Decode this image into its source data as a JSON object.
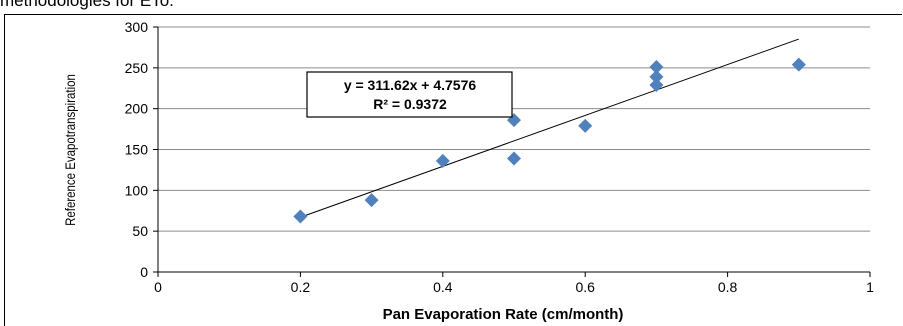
{
  "caption": "methodologies for ETo.",
  "chart_data": {
    "type": "scatter",
    "xlabel": "Pan Evaporation Rate (cm/month)",
    "ylabel": "Reference Evapotranspiration",
    "xlim": [
      0,
      1
    ],
    "ylim": [
      0,
      300
    ],
    "x_ticks": [
      0,
      0.2,
      0.4,
      0.6,
      0.8,
      1
    ],
    "y_ticks": [
      0,
      50,
      100,
      150,
      200,
      250,
      300
    ],
    "grid": "horizontal",
    "marker_color": "#4F81BD",
    "series": [
      {
        "points": [
          {
            "x": 0.2,
            "y": 68
          },
          {
            "x": 0.3,
            "y": 88
          },
          {
            "x": 0.4,
            "y": 136
          },
          {
            "x": 0.5,
            "y": 186
          },
          {
            "x": 0.5,
            "y": 139
          },
          {
            "x": 0.6,
            "y": 179
          },
          {
            "x": 0.7,
            "y": 251
          },
          {
            "x": 0.7,
            "y": 239
          },
          {
            "x": 0.7,
            "y": 229
          },
          {
            "x": 0.9,
            "y": 254
          }
        ]
      }
    ],
    "trendline": {
      "slope": 311.62,
      "intercept": 4.7576,
      "x_range": [
        0.2,
        0.9
      ],
      "equation": "y = 311.62x + 4.7576",
      "r_squared": "R² = 0.9372"
    }
  }
}
